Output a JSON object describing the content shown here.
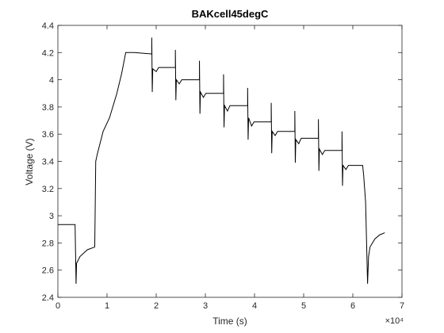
{
  "chart_data": {
    "type": "line",
    "title": "BAKcell45degC",
    "x_label": "Time (s)",
    "y_label": "Voltage (V)",
    "x_multiplier": "×10⁴",
    "color": "#000000",
    "x": [
      0,
      0.35,
      0.37,
      0.38,
      0.45,
      0.6,
      0.75,
      0.77,
      0.8,
      0.92,
      1.05,
      1.2,
      1.3,
      1.38,
      1.55,
      1.9,
      1.91,
      1.91,
      1.92,
      1.93,
      2.0,
      2.05,
      2.38,
      2.39,
      2.39,
      2.4,
      2.41,
      2.47,
      2.52,
      2.87,
      2.88,
      2.88,
      2.89,
      2.9,
      2.96,
      3.01,
      3.36,
      3.37,
      3.37,
      3.38,
      3.39,
      3.45,
      3.5,
      3.85,
      3.86,
      3.86,
      3.87,
      3.88,
      3.94,
      3.99,
      4.33,
      4.34,
      4.34,
      4.35,
      4.36,
      4.42,
      4.47,
      4.81,
      4.82,
      4.82,
      4.83,
      4.84,
      4.9,
      4.95,
      5.29,
      5.3,
      5.3,
      5.31,
      5.32,
      5.38,
      5.43,
      5.77,
      5.78,
      5.78,
      5.79,
      5.8,
      5.86,
      5.91,
      6.2,
      6.22,
      6.26,
      6.3,
      6.32,
      6.35,
      6.45,
      6.55,
      6.65
    ],
    "values": [
      2.935,
      2.935,
      2.5,
      2.65,
      2.7,
      2.75,
      2.77,
      3.4,
      3.45,
      3.62,
      3.72,
      3.9,
      4.05,
      4.2,
      4.2,
      4.19,
      4.19,
      4.31,
      3.91,
      4.08,
      4.06,
      4.09,
      4.09,
      4.09,
      4.22,
      3.85,
      4.0,
      3.97,
      4.0,
      4.0,
      4.0,
      4.14,
      3.75,
      3.91,
      3.87,
      3.9,
      3.9,
      3.9,
      4.04,
      3.65,
      3.81,
      3.77,
      3.81,
      3.81,
      3.81,
      3.94,
      3.56,
      3.72,
      3.66,
      3.69,
      3.69,
      3.69,
      3.83,
      3.46,
      3.62,
      3.59,
      3.62,
      3.62,
      3.62,
      3.77,
      3.39,
      3.56,
      3.53,
      3.57,
      3.57,
      3.57,
      3.71,
      3.33,
      3.49,
      3.45,
      3.48,
      3.48,
      3.48,
      3.62,
      3.22,
      3.37,
      3.34,
      3.37,
      3.37,
      3.3,
      3.1,
      2.5,
      2.7,
      2.77,
      2.83,
      2.86,
      2.875
    ],
    "xlim": [
      0,
      7
    ],
    "xticks": [
      0,
      1,
      2,
      3,
      4,
      5,
      6,
      7
    ],
    "ylim": [
      2.4,
      4.4
    ],
    "yticks": [
      2.4,
      2.6,
      2.8,
      3,
      3.2,
      3.4,
      3.6,
      3.8,
      4,
      4.2,
      4.4
    ],
    "grid": false
  }
}
